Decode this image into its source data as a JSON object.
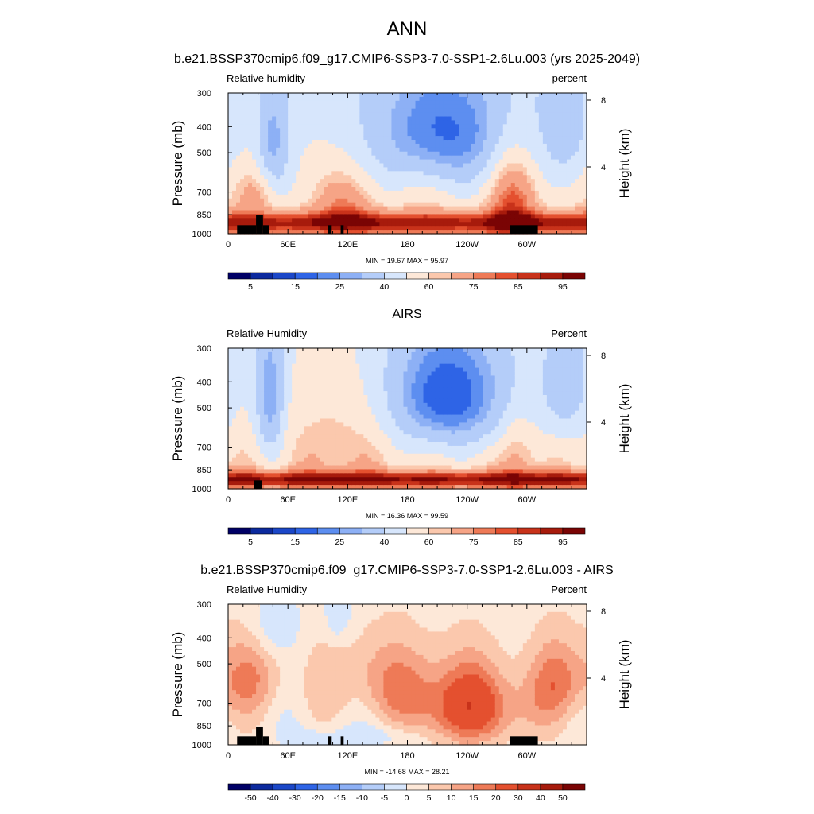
{
  "main_title": "ANN",
  "colors": {
    "rh_palette": [
      "#000066",
      "#0c2a9e",
      "#1b47c8",
      "#2e64e6",
      "#5d8ef0",
      "#8db0f5",
      "#b4cdf9",
      "#d7e6fc",
      "#fde8d8",
      "#fbc8ad",
      "#f6a486",
      "#ee7a57",
      "#e4502f",
      "#c8321a",
      "#a71b0c",
      "#7a0404"
    ],
    "diff_palette": [
      "#000066",
      "#0c2a9e",
      "#1b47c8",
      "#2e64e6",
      "#5d8ef0",
      "#8db0f5",
      "#b4cdf9",
      "#d7e6fc",
      "#fde8d8",
      "#fbc8ad",
      "#f6a486",
      "#ee7a57",
      "#e4502f",
      "#c8321a",
      "#a71b0c",
      "#7a0404"
    ],
    "terrain": "#000000"
  },
  "chart_data": [
    {
      "type": "heatmap",
      "title": "b.e21.BSSP370cmip6.f09_g17.CMIP6-SSP3-7.0-SSP1-2.6Lu.003 (yrs 2025-2049)",
      "left_label": "Relative humidity",
      "right_label": "percent",
      "ylabel": "Pressure (mb)",
      "ylabel_right": "Height (km)",
      "x_ticks": [
        "0",
        "60E",
        "120E",
        "180",
        "120W",
        "60W"
      ],
      "y_ticks": [
        "300",
        "400",
        "500",
        "700",
        "850",
        "1000"
      ],
      "y_ticks_right": [
        "8",
        "4"
      ],
      "xlim": [
        0,
        360
      ],
      "ylim": [
        1000,
        300
      ],
      "stats": "MIN =  19.67  MAX =  95.97",
      "colorbar_labels": [
        "5",
        "15",
        "25",
        "40",
        "60",
        "75",
        "85",
        "95"
      ],
      "field": "model"
    },
    {
      "type": "heatmap",
      "title": "AIRS",
      "left_label": "Relative Humidity",
      "right_label": "Percent",
      "ylabel": "Pressure (mb)",
      "ylabel_right": "Height (km)",
      "x_ticks": [
        "0",
        "60E",
        "120E",
        "180",
        "120W",
        "60W"
      ],
      "y_ticks": [
        "300",
        "400",
        "500",
        "700",
        "850",
        "1000"
      ],
      "y_ticks_right": [
        "8",
        "4"
      ],
      "xlim": [
        0,
        360
      ],
      "ylim": [
        1000,
        300
      ],
      "stats": "MIN =  16.36  MAX =  99.59",
      "colorbar_labels": [
        "5",
        "15",
        "25",
        "40",
        "60",
        "75",
        "85",
        "95"
      ],
      "field": "obs"
    },
    {
      "type": "heatmap",
      "title": "b.e21.BSSP370cmip6.f09_g17.CMIP6-SSP3-7.0-SSP1-2.6Lu.003 - AIRS",
      "left_label": "Relative Humidity",
      "right_label": "Percent",
      "ylabel": "Pressure (mb)",
      "ylabel_right": "Height (km)",
      "x_ticks": [
        "0",
        "60E",
        "120E",
        "180",
        "120W",
        "60W"
      ],
      "y_ticks": [
        "300",
        "400",
        "500",
        "700",
        "850",
        "1000"
      ],
      "y_ticks_right": [
        "8",
        "4"
      ],
      "xlim": [
        0,
        360
      ],
      "ylim": [
        1000,
        300
      ],
      "stats": "MIN = -14.68  MAX =  28.21",
      "colorbar_labels": [
        "-50",
        "-40",
        "-30",
        "-20",
        "-15",
        "-10",
        "-5",
        "0",
        "5",
        "10",
        "15",
        "20",
        "30",
        "40",
        "50"
      ],
      "field": "diff"
    }
  ]
}
